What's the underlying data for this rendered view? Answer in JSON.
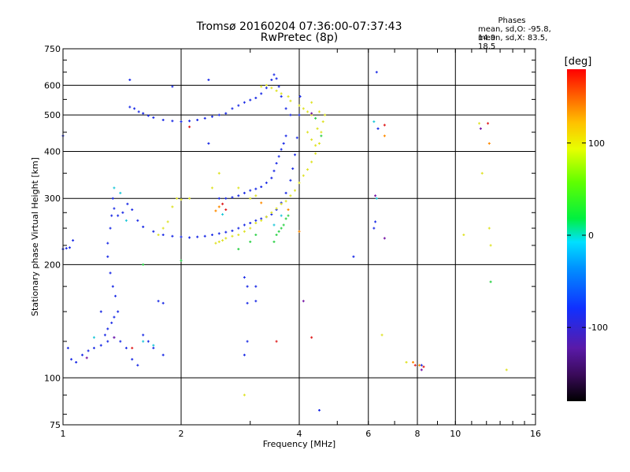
{
  "header": {
    "title_line1": "Tromsø 20160204 07:36:00-07:37:43",
    "title_line2": "RwPretec (8p)",
    "phase_heading": "Phases",
    "phase_o": "mean, sd,O: -95.8, 14.9",
    "phase_x": "mean, sd,X: 83.5, 18.5"
  },
  "colorbar": {
    "unit_label": "[deg]",
    "ticks": [
      "100",
      "0",
      "-100"
    ],
    "tick_values": [
      100,
      0,
      -100
    ],
    "range": [
      -180,
      180
    ]
  },
  "chart_data": {
    "type": "scatter",
    "title": "Tromsø 20160204 07:36:00-07:37:43",
    "subtitle": "RwPretec (8p)",
    "xlabel": "Frequency [MHz]",
    "ylabel": "Stationary phase Virtual Height [km]",
    "xscale": "log",
    "yscale": "log",
    "xlim": [
      1,
      16
    ],
    "ylim": [
      75,
      750
    ],
    "xticks": [
      1,
      2,
      4,
      6,
      8,
      10,
      16
    ],
    "xtick_labels": [
      "1",
      "2",
      "4",
      "6",
      "8",
      "10",
      "16"
    ],
    "yticks": [
      75,
      100,
      200,
      300,
      400,
      500,
      600,
      750
    ],
    "ytick_labels": [
      "75",
      "100",
      "200",
      "300",
      "400",
      "500",
      "600",
      "750"
    ],
    "grid": true,
    "series": [
      {
        "phase": -100,
        "color": "#1e2ee6",
        "points": [
          [
            1.0,
            220
          ],
          [
            1.02,
            221
          ],
          [
            1.04,
            222
          ],
          [
            1.06,
            232
          ],
          [
            1.03,
            120
          ],
          [
            1.05,
            112
          ],
          [
            1.08,
            110
          ],
          [
            1.12,
            115
          ],
          [
            1.16,
            118
          ],
          [
            1.2,
            120
          ],
          [
            1.25,
            122
          ],
          [
            1.3,
            125
          ],
          [
            1.35,
            128
          ],
          [
            1.4,
            125
          ],
          [
            1.45,
            120
          ],
          [
            1.5,
            112
          ],
          [
            1.55,
            108
          ],
          [
            1.3,
            228
          ],
          [
            1.32,
            250
          ],
          [
            1.33,
            270
          ],
          [
            1.34,
            300
          ],
          [
            1.35,
            282
          ],
          [
            1.38,
            270
          ],
          [
            1.42,
            275
          ],
          [
            1.46,
            290
          ],
          [
            1.5,
            280
          ],
          [
            1.55,
            262
          ],
          [
            1.6,
            252
          ],
          [
            1.7,
            245
          ],
          [
            1.8,
            240
          ],
          [
            1.9,
            238
          ],
          [
            2.0,
            237
          ],
          [
            2.1,
            236
          ],
          [
            2.2,
            237
          ],
          [
            2.3,
            238
          ],
          [
            2.4,
            240
          ],
          [
            2.5,
            242
          ],
          [
            2.6,
            244
          ],
          [
            2.7,
            246
          ],
          [
            2.8,
            250
          ],
          [
            2.9,
            255
          ],
          [
            3.0,
            258
          ],
          [
            3.1,
            262
          ],
          [
            3.2,
            265
          ],
          [
            3.3,
            268
          ],
          [
            3.4,
            272
          ],
          [
            3.5,
            280
          ],
          [
            3.6,
            292
          ],
          [
            3.7,
            310
          ],
          [
            3.8,
            335
          ],
          [
            3.85,
            360
          ],
          [
            3.9,
            392
          ],
          [
            3.95,
            435
          ],
          [
            4.0,
            500
          ],
          [
            4.02,
            560
          ],
          [
            1.3,
            210
          ],
          [
            1.32,
            190
          ],
          [
            1.34,
            175
          ],
          [
            1.36,
            165
          ],
          [
            1.38,
            150
          ],
          [
            1.35,
            145
          ],
          [
            1.33,
            140
          ],
          [
            1.3,
            135
          ],
          [
            1.28,
            130
          ],
          [
            1.25,
            150
          ],
          [
            1.48,
            525
          ],
          [
            1.52,
            520
          ],
          [
            1.56,
            510
          ],
          [
            1.6,
            505
          ],
          [
            1.65,
            498
          ],
          [
            1.7,
            492
          ],
          [
            1.8,
            485
          ],
          [
            1.9,
            482
          ],
          [
            2.0,
            480
          ],
          [
            2.1,
            482
          ],
          [
            2.2,
            485
          ],
          [
            2.3,
            490
          ],
          [
            2.4,
            495
          ],
          [
            2.5,
            500
          ],
          [
            2.6,
            505
          ],
          [
            2.7,
            520
          ],
          [
            2.8,
            530
          ],
          [
            2.9,
            540
          ],
          [
            3.0,
            548
          ],
          [
            3.1,
            555
          ],
          [
            3.2,
            570
          ],
          [
            3.3,
            590
          ],
          [
            3.4,
            620
          ],
          [
            3.45,
            640
          ],
          [
            3.5,
            625
          ],
          [
            3.55,
            595
          ],
          [
            3.6,
            560
          ],
          [
            3.7,
            520
          ],
          [
            3.8,
            500
          ],
          [
            2.5,
            300
          ],
          [
            2.6,
            300
          ],
          [
            2.7,
            302
          ],
          [
            2.8,
            305
          ],
          [
            2.9,
            310
          ],
          [
            3.0,
            315
          ],
          [
            3.1,
            318
          ],
          [
            3.2,
            322
          ],
          [
            3.3,
            330
          ],
          [
            3.4,
            340
          ],
          [
            3.45,
            355
          ],
          [
            3.5,
            372
          ],
          [
            3.55,
            388
          ],
          [
            3.6,
            405
          ],
          [
            3.65,
            420
          ],
          [
            3.7,
            440
          ],
          [
            1.75,
            160
          ],
          [
            1.8,
            158
          ],
          [
            1.6,
            130
          ],
          [
            1.65,
            125
          ],
          [
            1.7,
            120
          ],
          [
            1.8,
            115
          ],
          [
            1.48,
            620
          ],
          [
            1.9,
            595
          ],
          [
            2.35,
            620
          ],
          [
            2.35,
            420
          ],
          [
            1.0,
            440
          ],
          [
            2.9,
            185
          ],
          [
            2.95,
            175
          ],
          [
            2.95,
            158
          ],
          [
            2.95,
            125
          ],
          [
            2.9,
            115
          ],
          [
            3.1,
            175
          ],
          [
            3.1,
            160
          ],
          [
            4.5,
            82
          ],
          [
            5.5,
            210
          ],
          [
            6.3,
            650
          ],
          [
            6.35,
            460
          ],
          [
            6.2,
            250
          ],
          [
            6.25,
            260
          ],
          [
            8.2,
            108
          ]
        ]
      },
      {
        "phase": 100,
        "color": "#dfe32a",
        "points": [
          [
            2.45,
            228
          ],
          [
            2.5,
            230
          ],
          [
            2.55,
            232
          ],
          [
            2.6,
            235
          ],
          [
            2.7,
            238
          ],
          [
            2.8,
            240
          ],
          [
            2.9,
            245
          ],
          [
            3.0,
            250
          ],
          [
            3.1,
            258
          ],
          [
            3.2,
            262
          ],
          [
            3.3,
            268
          ],
          [
            3.4,
            275
          ],
          [
            3.5,
            282
          ],
          [
            3.6,
            290
          ],
          [
            3.7,
            295
          ],
          [
            3.8,
            305
          ],
          [
            3.9,
            315
          ],
          [
            4.0,
            330
          ],
          [
            4.1,
            345
          ],
          [
            4.2,
            358
          ],
          [
            4.3,
            375
          ],
          [
            4.4,
            395
          ],
          [
            4.5,
            420
          ],
          [
            4.55,
            450
          ],
          [
            4.6,
            480
          ],
          [
            4.65,
            500
          ],
          [
            3.2,
            595
          ],
          [
            3.3,
            600
          ],
          [
            3.4,
            590
          ],
          [
            3.5,
            580
          ],
          [
            3.6,
            570
          ],
          [
            3.75,
            560
          ],
          [
            3.8,
            545
          ],
          [
            4.0,
            530
          ],
          [
            4.1,
            520
          ],
          [
            4.2,
            510
          ],
          [
            4.3,
            500
          ],
          [
            1.95,
            300
          ],
          [
            2.0,
            298
          ],
          [
            2.1,
            300
          ],
          [
            2.4,
            320
          ],
          [
            2.8,
            320
          ],
          [
            3.0,
            300
          ],
          [
            3.1,
            305
          ],
          [
            4.2,
            450
          ],
          [
            4.3,
            430
          ],
          [
            4.4,
            415
          ],
          [
            4.45,
            460
          ],
          [
            4.5,
            510
          ],
          [
            4.3,
            540
          ],
          [
            1.75,
            240
          ],
          [
            1.8,
            250
          ],
          [
            1.85,
            260
          ],
          [
            1.9,
            285
          ],
          [
            2.5,
            350
          ],
          [
            2.9,
            90
          ],
          [
            11.5,
            475
          ],
          [
            11.7,
            350
          ],
          [
            12.2,
            250
          ],
          [
            12.3,
            225
          ],
          [
            13.5,
            105
          ],
          [
            6.5,
            130
          ],
          [
            7.5,
            110
          ],
          [
            10.5,
            240
          ]
        ]
      },
      {
        "phase": 20,
        "color": "#30d24a",
        "points": [
          [
            3.45,
            230
          ],
          [
            3.5,
            240
          ],
          [
            3.55,
            245
          ],
          [
            3.6,
            250
          ],
          [
            3.65,
            255
          ],
          [
            3.7,
            265
          ],
          [
            3.75,
            270
          ],
          [
            2.8,
            220
          ],
          [
            3.0,
            230
          ],
          [
            3.1,
            240
          ],
          [
            1.6,
            200
          ],
          [
            2.0,
            205
          ],
          [
            4.4,
            490
          ],
          [
            4.55,
            440
          ],
          [
            12.3,
            180
          ]
        ]
      },
      {
        "phase": -40,
        "color": "#20c8d8",
        "points": [
          [
            1.35,
            320
          ],
          [
            1.4,
            310
          ],
          [
            1.2,
            128
          ],
          [
            1.6,
            125
          ],
          [
            1.7,
            122
          ],
          [
            1.45,
            262
          ],
          [
            2.55,
            272
          ],
          [
            3.45,
            255
          ],
          [
            3.6,
            270
          ],
          [
            6.2,
            480
          ],
          [
            6.3,
            300
          ]
        ]
      },
      {
        "phase": 170,
        "color": "#e02020",
        "points": [
          [
            1.5,
            120
          ],
          [
            2.1,
            465
          ],
          [
            2.55,
            290
          ],
          [
            2.6,
            280
          ],
          [
            3.5,
            125
          ],
          [
            4.3,
            128
          ],
          [
            6.6,
            470
          ],
          [
            7.9,
            108
          ],
          [
            8.3,
            107
          ],
          [
            12.1,
            475
          ]
        ]
      },
      {
        "phase": 140,
        "color": "#ff8c00",
        "points": [
          [
            2.45,
            278
          ],
          [
            2.5,
            285
          ],
          [
            3.2,
            292
          ],
          [
            3.75,
            280
          ],
          [
            4.0,
            245
          ],
          [
            6.6,
            440
          ],
          [
            7.8,
            110
          ],
          [
            8.1,
            108
          ],
          [
            12.2,
            420
          ]
        ]
      },
      {
        "phase": -150,
        "color": "#7a1ca8",
        "points": [
          [
            1.15,
            113
          ],
          [
            1.35,
            128
          ],
          [
            4.1,
            160
          ],
          [
            4.3,
            505
          ],
          [
            6.25,
            305
          ],
          [
            6.6,
            235
          ],
          [
            8.2,
            105
          ],
          [
            11.6,
            460
          ]
        ]
      }
    ]
  }
}
